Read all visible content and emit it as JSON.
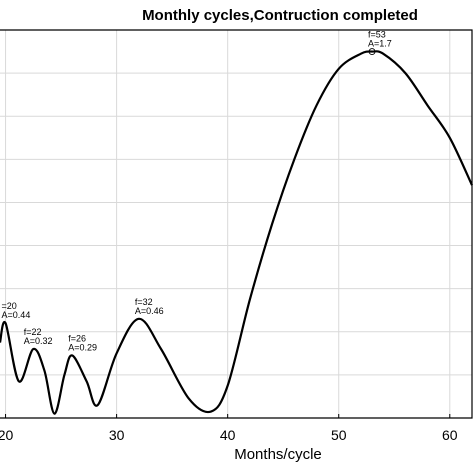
{
  "chart_data": {
    "type": "line",
    "title": "Monthly cycles,Contruction completed",
    "xlabel": "Months/cycle",
    "ylabel": "",
    "grid": true,
    "xlim": [
      19.5,
      62
    ],
    "ylim": [
      0.0,
      1.8
    ],
    "xticks": [
      20,
      30,
      40,
      50,
      60
    ],
    "xtick_labels": [
      "20",
      "30",
      "40",
      "50",
      "60"
    ],
    "ygrid_values": [
      0.2,
      0.4,
      0.6,
      0.8,
      1.0,
      1.2,
      1.4,
      1.6
    ],
    "series": [
      {
        "x": [
          19.5,
          20,
          21.2,
          22.5,
          23.5,
          24.4,
          25.3,
          26,
          27.3,
          28.3,
          30,
          32,
          34,
          36.5,
          38.5,
          40,
          42,
          44,
          46,
          48,
          50,
          52,
          53,
          54,
          56,
          58,
          60,
          62
        ],
        "y": [
          0.35,
          0.44,
          0.17,
          0.32,
          0.22,
          0.02,
          0.2,
          0.29,
          0.17,
          0.06,
          0.3,
          0.46,
          0.32,
          0.09,
          0.03,
          0.15,
          0.55,
          0.9,
          1.2,
          1.45,
          1.62,
          1.69,
          1.7,
          1.69,
          1.6,
          1.45,
          1.3,
          1.08
        ]
      }
    ],
    "annotations": [
      {
        "x": 20,
        "y": 0.44,
        "line1": "=20",
        "line2": "A=0.44"
      },
      {
        "x": 22,
        "y": 0.32,
        "line1": "f=22",
        "line2": "A=0.32"
      },
      {
        "x": 26,
        "y": 0.29,
        "line1": "f=26",
        "line2": "A=0.29"
      },
      {
        "x": 32,
        "y": 0.46,
        "line1": "f=32",
        "line2": "A=0.46"
      },
      {
        "x": 53,
        "y": 1.7,
        "line1": "f=53",
        "line2": "A=1.7",
        "marker": true
      }
    ]
  }
}
